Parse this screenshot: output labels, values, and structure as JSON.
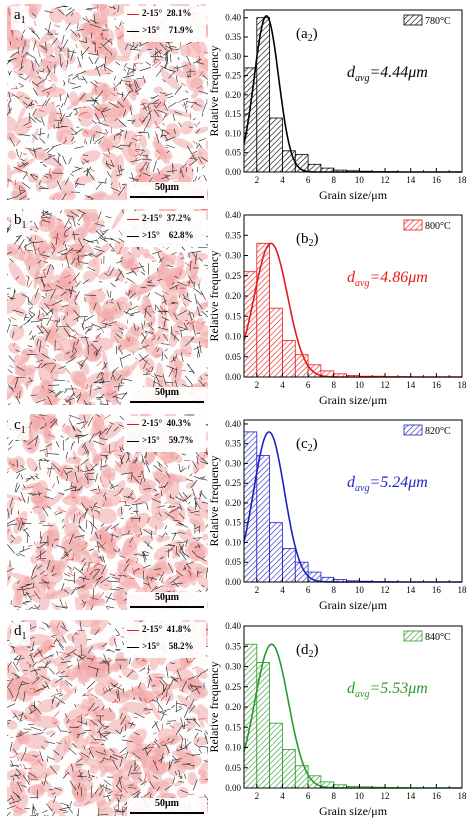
{
  "panels": [
    {
      "micro_label": "a",
      "micro_sub": "1",
      "chart_label": "a",
      "chart_sub": "2",
      "low_angle": {
        "label": "2-15°",
        "value": "28.1%"
      },
      "high_angle": {
        "label": ">15°",
        "value": "71.9%"
      },
      "scale_label": "50μm",
      "temp_label": "780°C",
      "davg_sym": "d",
      "davg_sub": "avg",
      "davg_value": "=4.44μm",
      "color": "#000000",
      "fill_fraction": 0.28
    },
    {
      "micro_label": "b",
      "micro_sub": "1",
      "chart_label": "b",
      "chart_sub": "2",
      "low_angle": {
        "label": "2-15°",
        "value": "37.2%"
      },
      "high_angle": {
        "label": ">15°",
        "value": "62.8%"
      },
      "scale_label": "50μm",
      "temp_label": "800°C",
      "davg_sym": "d",
      "davg_sub": "avg",
      "davg_value": "=4.86μm",
      "color": "#e8191a",
      "fill_fraction": 0.37
    },
    {
      "micro_label": "c",
      "micro_sub": "1",
      "chart_label": "c",
      "chart_sub": "2",
      "low_angle": {
        "label": "2-15°",
        "value": "40.3%"
      },
      "high_angle": {
        "label": ">15°",
        "value": "59.7%"
      },
      "scale_label": "50μm",
      "temp_label": "820°C",
      "davg_sym": "d",
      "davg_sub": "avg",
      "davg_value": "=5.24μm",
      "color": "#1f1fc8",
      "fill_fraction": 0.4
    },
    {
      "micro_label": "d",
      "micro_sub": "1",
      "chart_label": "d",
      "chart_sub": "2",
      "low_angle": {
        "label": "2-15°",
        "value": "41.8%"
      },
      "high_angle": {
        "label": ">15°",
        "value": "58.2%"
      },
      "scale_label": "50μm",
      "temp_label": "840°C",
      "davg_sym": "d",
      "davg_sub": "avg",
      "davg_value": "=5.53μm",
      "color": "#2a9a2a",
      "fill_fraction": 0.42
    }
  ],
  "chart_data": [
    {
      "type": "bar",
      "xlabel": "Grain size/μm",
      "ylabel": "Relative frequency",
      "xlim": [
        1,
        18
      ],
      "ylim": [
        0,
        0.42
      ],
      "xticks": [
        "2",
        "4",
        "6",
        "8",
        "10",
        "12",
        "14",
        "16",
        "18"
      ],
      "yticks": [
        "0.00",
        "0.05",
        "0.10",
        "0.15",
        "0.20",
        "0.25",
        "0.30",
        "0.35",
        "0.40"
      ],
      "bin_width": 1,
      "bin_starts": [
        1,
        2,
        3,
        4,
        5,
        6,
        7,
        8,
        9,
        10,
        11,
        12,
        13,
        14,
        15,
        16
      ],
      "values": [
        0.27,
        0.4,
        0.14,
        0.055,
        0.045,
        0.02,
        0.01,
        0.005,
        0.003,
        0.002,
        0.001,
        0.001,
        0,
        0,
        0,
        0
      ],
      "fit": {
        "mu": 2.75,
        "sigma": 0.95,
        "peak": 0.405
      },
      "legend": "780°C",
      "legend_position": "top-right"
    },
    {
      "type": "bar",
      "xlabel": "Grain size/μm",
      "ylabel": "Relative frequency",
      "xlim": [
        1,
        18
      ],
      "ylim": [
        0,
        0.4
      ],
      "xticks": [
        "2",
        "4",
        "6",
        "8",
        "10",
        "12",
        "14",
        "16",
        "18"
      ],
      "yticks": [
        "0.00",
        "0.05",
        "0.10",
        "0.15",
        "0.20",
        "0.25",
        "0.30",
        "0.35",
        "0.40"
      ],
      "bin_width": 1,
      "bin_starts": [
        1,
        2,
        3,
        4,
        5,
        6,
        7,
        8,
        9,
        10,
        11,
        12,
        13,
        14,
        15,
        16
      ],
      "values": [
        0.26,
        0.33,
        0.17,
        0.09,
        0.055,
        0.03,
        0.015,
        0.008,
        0.004,
        0.002,
        0.002,
        0.001,
        0.001,
        0,
        0,
        0
      ],
      "fit": {
        "mu": 3.1,
        "sigma": 1.3,
        "peak": 0.33
      },
      "legend": "800°C",
      "legend_position": "top-right"
    },
    {
      "type": "bar",
      "xlabel": "Grain size/μm",
      "ylabel": "Relative frequency",
      "xlim": [
        1,
        18
      ],
      "ylim": [
        0,
        0.41
      ],
      "xticks": [
        "2",
        "4",
        "6",
        "8",
        "10",
        "12",
        "14",
        "16",
        "18"
      ],
      "yticks": [
        "0.00",
        "0.05",
        "0.10",
        "0.15",
        "0.20",
        "0.25",
        "0.30",
        "0.35",
        "0.40"
      ],
      "bin_width": 1,
      "bin_starts": [
        1,
        2,
        3,
        4,
        5,
        6,
        7,
        8,
        9,
        10,
        11,
        12,
        13,
        14,
        15,
        16
      ],
      "values": [
        0.38,
        0.32,
        0.15,
        0.085,
        0.05,
        0.025,
        0.012,
        0.006,
        0.003,
        0.002,
        0.001,
        0.001,
        0,
        0,
        0,
        0
      ],
      "fit": {
        "mu": 2.95,
        "sigma": 1.2,
        "peak": 0.38
      },
      "legend": "820°C",
      "legend_position": "top-right"
    },
    {
      "type": "bar",
      "xlabel": "Grain size/μm",
      "ylabel": "Relative frequency",
      "xlim": [
        1,
        18
      ],
      "ylim": [
        0,
        0.4
      ],
      "xticks": [
        "2",
        "4",
        "6",
        "8",
        "10",
        "12",
        "14",
        "16",
        "18"
      ],
      "yticks": [
        "0.00",
        "0.05",
        "0.10",
        "0.15",
        "0.20",
        "0.25",
        "0.30",
        "0.35",
        "0.40"
      ],
      "bin_width": 1,
      "bin_starts": [
        1,
        2,
        3,
        4,
        5,
        6,
        7,
        8,
        9,
        10,
        11,
        12,
        13,
        14,
        15,
        16
      ],
      "values": [
        0.355,
        0.31,
        0.16,
        0.095,
        0.055,
        0.03,
        0.015,
        0.008,
        0.004,
        0.003,
        0.002,
        0.001,
        0.001,
        0,
        0,
        0
      ],
      "fit": {
        "mu": 3.15,
        "sigma": 1.3,
        "peak": 0.355
      },
      "legend": "840°C",
      "legend_position": "top-right"
    }
  ]
}
